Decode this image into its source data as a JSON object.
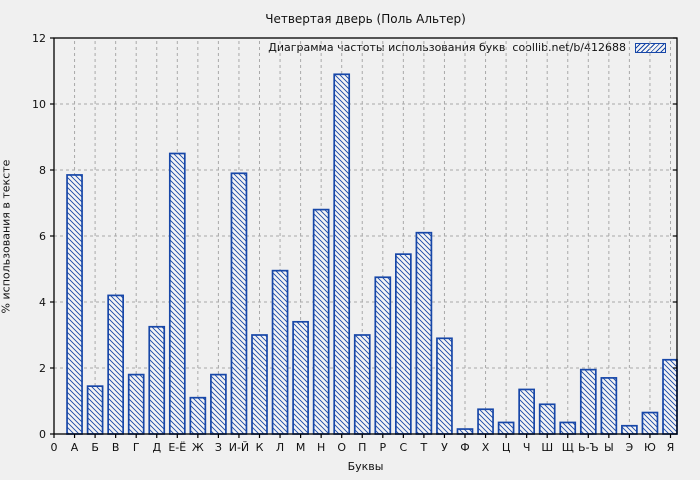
{
  "window": {
    "background": "#f0f0f0"
  },
  "chart_data": {
    "type": "bar",
    "title": "Четвертая дверь (Поль Альтер)",
    "legend": "Диаграмма частоты использования букв  coollib.net/b/412688",
    "legend_position": "top-right",
    "xlabel": "Буквы",
    "ylabel": "% использования в тексте",
    "categories": [
      "0",
      "А",
      "Б",
      "В",
      "Г",
      "Д",
      "Е-Ё",
      "Ж",
      "З",
      "И-Й",
      "К",
      "Л",
      "М",
      "Н",
      "О",
      "П",
      "Р",
      "С",
      "Т",
      "У",
      "Ф",
      "Х",
      "Ц",
      "Ч",
      "Ш",
      "Щ",
      "Ь-Ъ",
      "Ы",
      "Э",
      "Ю",
      "Я"
    ],
    "values": [
      0,
      7.85,
      1.45,
      4.2,
      1.8,
      3.25,
      8.5,
      1.1,
      1.8,
      7.9,
      3.0,
      4.95,
      3.4,
      6.8,
      10.9,
      3.0,
      4.75,
      5.45,
      6.1,
      2.9,
      0.15,
      0.75,
      0.35,
      1.35,
      0.9,
      0.35,
      1.95,
      1.7,
      0.25,
      0.65,
      2.25
    ],
    "ylim": [
      0,
      12
    ],
    "yticks": [
      0,
      2,
      4,
      6,
      8,
      10,
      12
    ],
    "grid": true,
    "bar_style": "diagonal-hatch",
    "colors": {
      "bar_stroke": "#1747a8",
      "bar_fill": "#f4f4f4",
      "grid": "#a9a9a9",
      "axis": "#000000",
      "text": "#111111",
      "background": "#f0f0f0"
    }
  }
}
